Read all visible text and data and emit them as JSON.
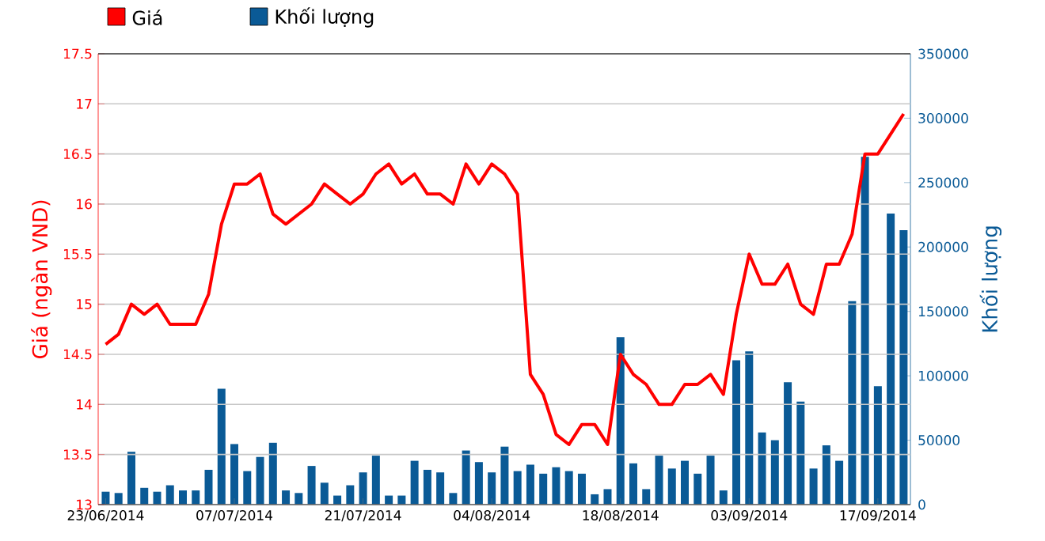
{
  "chart_data": {
    "type": "line",
    "categories": [
      "23/06/2014",
      null,
      null,
      null,
      null,
      null,
      null,
      null,
      null,
      null,
      "07/07/2014",
      null,
      null,
      null,
      null,
      null,
      null,
      null,
      null,
      null,
      "21/07/2014",
      null,
      null,
      null,
      null,
      null,
      null,
      null,
      null,
      null,
      "04/08/2014",
      null,
      null,
      null,
      null,
      null,
      null,
      null,
      null,
      null,
      "18/08/2014",
      null,
      null,
      null,
      null,
      null,
      null,
      null,
      null,
      null,
      "03/09/2014",
      null,
      null,
      null,
      null,
      null,
      null,
      null,
      null,
      null,
      "17/09/2014",
      null,
      null
    ],
    "series": [
      {
        "name": "Khối lượng",
        "type": "bar",
        "axis": "y2",
        "color": "#0a5a96",
        "values": [
          10000,
          9000,
          41000,
          13000,
          10000,
          15000,
          11000,
          11000,
          27000,
          90000,
          47000,
          26000,
          37000,
          48000,
          11000,
          9000,
          30000,
          17000,
          7000,
          15000,
          25000,
          38000,
          7000,
          7000,
          34000,
          27000,
          25000,
          9000,
          42000,
          33000,
          25000,
          45000,
          26000,
          31000,
          24000,
          29000,
          26000,
          24000,
          8000,
          12000,
          130000,
          32000,
          12000,
          38000,
          28000,
          34000,
          24000,
          38000,
          11000,
          112000,
          119000,
          56000,
          50000,
          95000,
          80000,
          28000,
          46000,
          34000,
          158000,
          270000,
          92000,
          226000,
          213000
        ]
      },
      {
        "name": "Giá",
        "color": "#ff0000",
        "values": [
          14.6,
          14.7,
          15.0,
          14.9,
          15.0,
          14.8,
          14.8,
          14.8,
          15.1,
          15.8,
          16.2,
          16.2,
          16.3,
          15.9,
          15.8,
          15.9,
          16.0,
          16.2,
          16.1,
          16.0,
          16.1,
          16.3,
          16.4,
          16.2,
          16.3,
          16.1,
          16.1,
          16.0,
          16.4,
          16.2,
          16.4,
          16.3,
          16.1,
          14.3,
          14.1,
          13.7,
          13.6,
          13.8,
          13.8,
          13.6,
          14.5,
          14.3,
          14.2,
          14.0,
          14.0,
          14.2,
          14.2,
          14.3,
          14.1,
          14.9,
          15.5,
          15.2,
          15.2,
          15.4,
          15.0,
          14.9,
          15.4,
          15.4,
          15.7,
          16.5,
          16.5,
          16.7,
          16.9
        ]
      }
    ],
    "ylabel": "Giá (ngàn VND)",
    "y2label": "Khối lượng",
    "ylim": [
      13,
      17.5
    ],
    "yticks": [
      13,
      13.5,
      14,
      14.5,
      15,
      15.5,
      16,
      16.5,
      17,
      17.5
    ],
    "y2lim": [
      0,
      350000
    ],
    "y2ticks": [
      0,
      50000,
      100000,
      150000,
      200000,
      250000,
      300000,
      350000
    ],
    "grid": "y",
    "legend": "top left"
  }
}
